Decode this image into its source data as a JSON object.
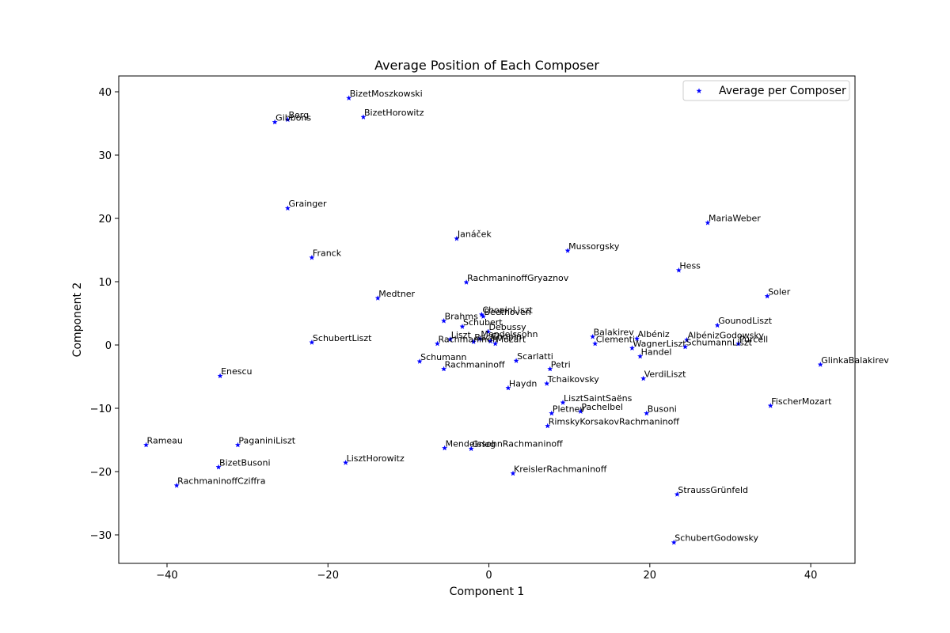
{
  "chart_data": {
    "type": "scatter",
    "title": "Average Position of Each Composer",
    "xlabel": "Component 1",
    "ylabel": "Component 2",
    "xlim": [
      -46,
      45.5
    ],
    "ylim": [
      -34.5,
      42.5
    ],
    "xticks": [
      -40,
      -20,
      0,
      20,
      40
    ],
    "yticks": [
      -30,
      -20,
      -10,
      0,
      10,
      20,
      30,
      40
    ],
    "xtick_labels": [
      "−40",
      "−20",
      "0",
      "20",
      "40"
    ],
    "ytick_labels": [
      "−30",
      "−20",
      "−10",
      "0",
      "10",
      "20",
      "30",
      "40"
    ],
    "grid": false,
    "legend": {
      "position": "top-right",
      "entries": [
        "Average per Composer"
      ]
    },
    "marker": "star",
    "color": "#0000ff",
    "series": [
      {
        "name": "Average per Composer",
        "points": [
          {
            "label": "BizetMoszkowski",
            "x": -17.4,
            "y": 39.0
          },
          {
            "label": "BizetHorowitz",
            "x": -15.6,
            "y": 36.0
          },
          {
            "label": "Berg",
            "x": -25.0,
            "y": 35.6
          },
          {
            "label": "Gibbons",
            "x": -26.6,
            "y": 35.2
          },
          {
            "label": "Grainger",
            "x": -25.0,
            "y": 21.6
          },
          {
            "label": "MariaWeber",
            "x": 27.2,
            "y": 19.3
          },
          {
            "label": "Janáček",
            "x": -4.0,
            "y": 16.8
          },
          {
            "label": "Mussorgsky",
            "x": 9.8,
            "y": 14.9
          },
          {
            "label": "Franck",
            "x": -22.0,
            "y": 13.8
          },
          {
            "label": "Hess",
            "x": 23.6,
            "y": 11.8
          },
          {
            "label": "RachmaninoffGryaznov",
            "x": -2.8,
            "y": 9.9
          },
          {
            "label": "Soler",
            "x": 34.6,
            "y": 7.7
          },
          {
            "label": "Medtner",
            "x": -13.8,
            "y": 7.4
          },
          {
            "label": "ChopinLiszt",
            "x": -0.9,
            "y": 4.8
          },
          {
            "label": "Beethoven",
            "x": -0.7,
            "y": 4.5
          },
          {
            "label": "Brahms",
            "x": -5.6,
            "y": 3.8
          },
          {
            "label": "Schubert",
            "x": -3.3,
            "y": 2.9
          },
          {
            "label": "GounodLiszt",
            "x": 28.4,
            "y": 3.1
          },
          {
            "label": "Debussy",
            "x": -0.1,
            "y": 2.1
          },
          {
            "label": "Balakirev",
            "x": 12.9,
            "y": 1.3
          },
          {
            "label": "Albéniz",
            "x": 18.4,
            "y": 1.0
          },
          {
            "label": "AlbénizGodowsky",
            "x": 24.6,
            "y": 0.8
          },
          {
            "label": "Liszt",
            "x": -4.8,
            "y": 0.9
          },
          {
            "label": "Mendelssohn",
            "x": -1.1,
            "y": 1.0
          },
          {
            "label": "Bach",
            "x": -1.9,
            "y": 0.5
          },
          {
            "label": "Chopin",
            "x": 0.2,
            "y": 0.6
          },
          {
            "label": "SchubertLiszt",
            "x": -22.0,
            "y": 0.4
          },
          {
            "label": "Rachmaninoff",
            "x": -6.4,
            "y": 0.2
          },
          {
            "label": "Mozart",
            "x": 0.8,
            "y": 0.2
          },
          {
            "label": "Clementi",
            "x": 13.2,
            "y": 0.2
          },
          {
            "label": "Purcell",
            "x": 31.0,
            "y": 0.2
          },
          {
            "label": "WagnerLiszt",
            "x": 17.8,
            "y": -0.5
          },
          {
            "label": "SchumannLiszt",
            "x": 24.4,
            "y": -0.3
          },
          {
            "label": "Handel",
            "x": 18.8,
            "y": -1.8
          },
          {
            "label": "Schumann",
            "x": -8.6,
            "y": -2.6
          },
          {
            "label": "Scarlatti",
            "x": 3.4,
            "y": -2.5
          },
          {
            "label": "GlinkaBalakirev",
            "x": 41.2,
            "y": -3.1
          },
          {
            "label": "Rachmaninoff",
            "x": -5.6,
            "y": -3.8
          },
          {
            "label": "Petri",
            "x": 7.6,
            "y": -3.8
          },
          {
            "label": "Enescu",
            "x": -33.4,
            "y": -4.9
          },
          {
            "label": "VerdiLiszt",
            "x": 19.2,
            "y": -5.3
          },
          {
            "label": "Tchaikovsky",
            "x": 7.2,
            "y": -6.1
          },
          {
            "label": "Haydn",
            "x": 2.4,
            "y": -6.8
          },
          {
            "label": "LisztSaintSaëns",
            "x": 9.2,
            "y": -9.1
          },
          {
            "label": "FischerMozart",
            "x": 35.0,
            "y": -9.6
          },
          {
            "label": "Pachelbel",
            "x": 11.4,
            "y": -10.5
          },
          {
            "label": "Pletnev",
            "x": 7.8,
            "y": -10.8
          },
          {
            "label": "Busoni",
            "x": 19.6,
            "y": -10.8
          },
          {
            "label": "RimskyKorsakovRachmaninoff",
            "x": 7.3,
            "y": -12.8
          },
          {
            "label": "Rameau",
            "x": -42.6,
            "y": -15.8
          },
          {
            "label": "PaganiniLiszt",
            "x": -31.2,
            "y": -15.8
          },
          {
            "label": "MendelssohnRachmaninoff",
            "x": -5.5,
            "y": -16.3
          },
          {
            "label": "Grieg",
            "x": -2.2,
            "y": -16.4
          },
          {
            "label": "LisztHorowitz",
            "x": -17.8,
            "y": -18.6
          },
          {
            "label": "BizetBusoni",
            "x": -33.6,
            "y": -19.3
          },
          {
            "label": "KreislerRachmaninoff",
            "x": 3.0,
            "y": -20.3
          },
          {
            "label": "RachmaninoffCziffra",
            "x": -38.8,
            "y": -22.2
          },
          {
            "label": "StraussGrünfeld",
            "x": 23.4,
            "y": -23.6
          },
          {
            "label": "SchubertGodowsky",
            "x": 23.0,
            "y": -31.2
          }
        ]
      }
    ]
  }
}
